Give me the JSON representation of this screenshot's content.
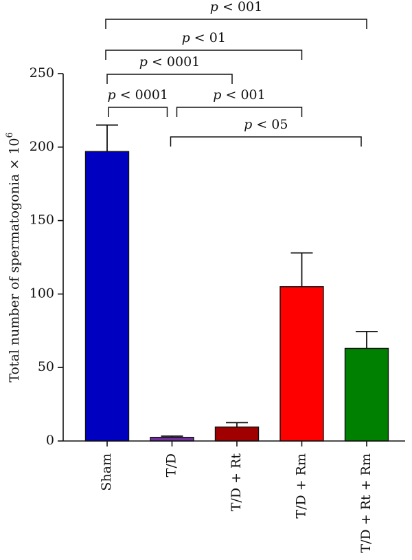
{
  "chart_data": {
    "type": "bar",
    "title": "",
    "xlabel": "",
    "ylabel": "Total number of spermatogonia × 10",
    "ylabel_superscript": "6",
    "ylim": [
      0,
      250
    ],
    "yticks": [
      0,
      50,
      100,
      150,
      200,
      250
    ],
    "categories": [
      "Sham",
      "T/D",
      "T/D + Rt",
      "T/D + Rm",
      "T/D + Rt + Rm"
    ],
    "values": [
      197,
      2.5,
      9.5,
      105,
      63
    ],
    "errors": [
      18,
      0.8,
      3,
      23,
      11.5
    ],
    "colors": [
      "#0000c0",
      "#7030a0",
      "#a00000",
      "#ff0000",
      "#008000"
    ],
    "grid": false,
    "legend": "none",
    "comparisons": [
      {
        "from": "Sham",
        "to": "T/D + Rt + Rm",
        "p_symbol": "p",
        "label": " < 001",
        "level": 6
      },
      {
        "from": "Sham",
        "to": "T/D + Rm",
        "p_symbol": "p",
        "label": " < 01",
        "level": 5
      },
      {
        "from": "Sham",
        "to": "T/D + Rt",
        "p_symbol": "p",
        "label": " < 0001",
        "level": 4
      },
      {
        "from": "Sham",
        "to": "T/D",
        "p_symbol": "p",
        "label": " < 0001",
        "level": 3
      },
      {
        "from": "T/D",
        "to": "T/D + Rm",
        "p_symbol": "p",
        "label": " < 001",
        "level": 3
      },
      {
        "from": "T/D",
        "to": "T/D + Rt + Rm",
        "p_symbol": "p",
        "label": " < 05",
        "level": 2
      }
    ]
  }
}
